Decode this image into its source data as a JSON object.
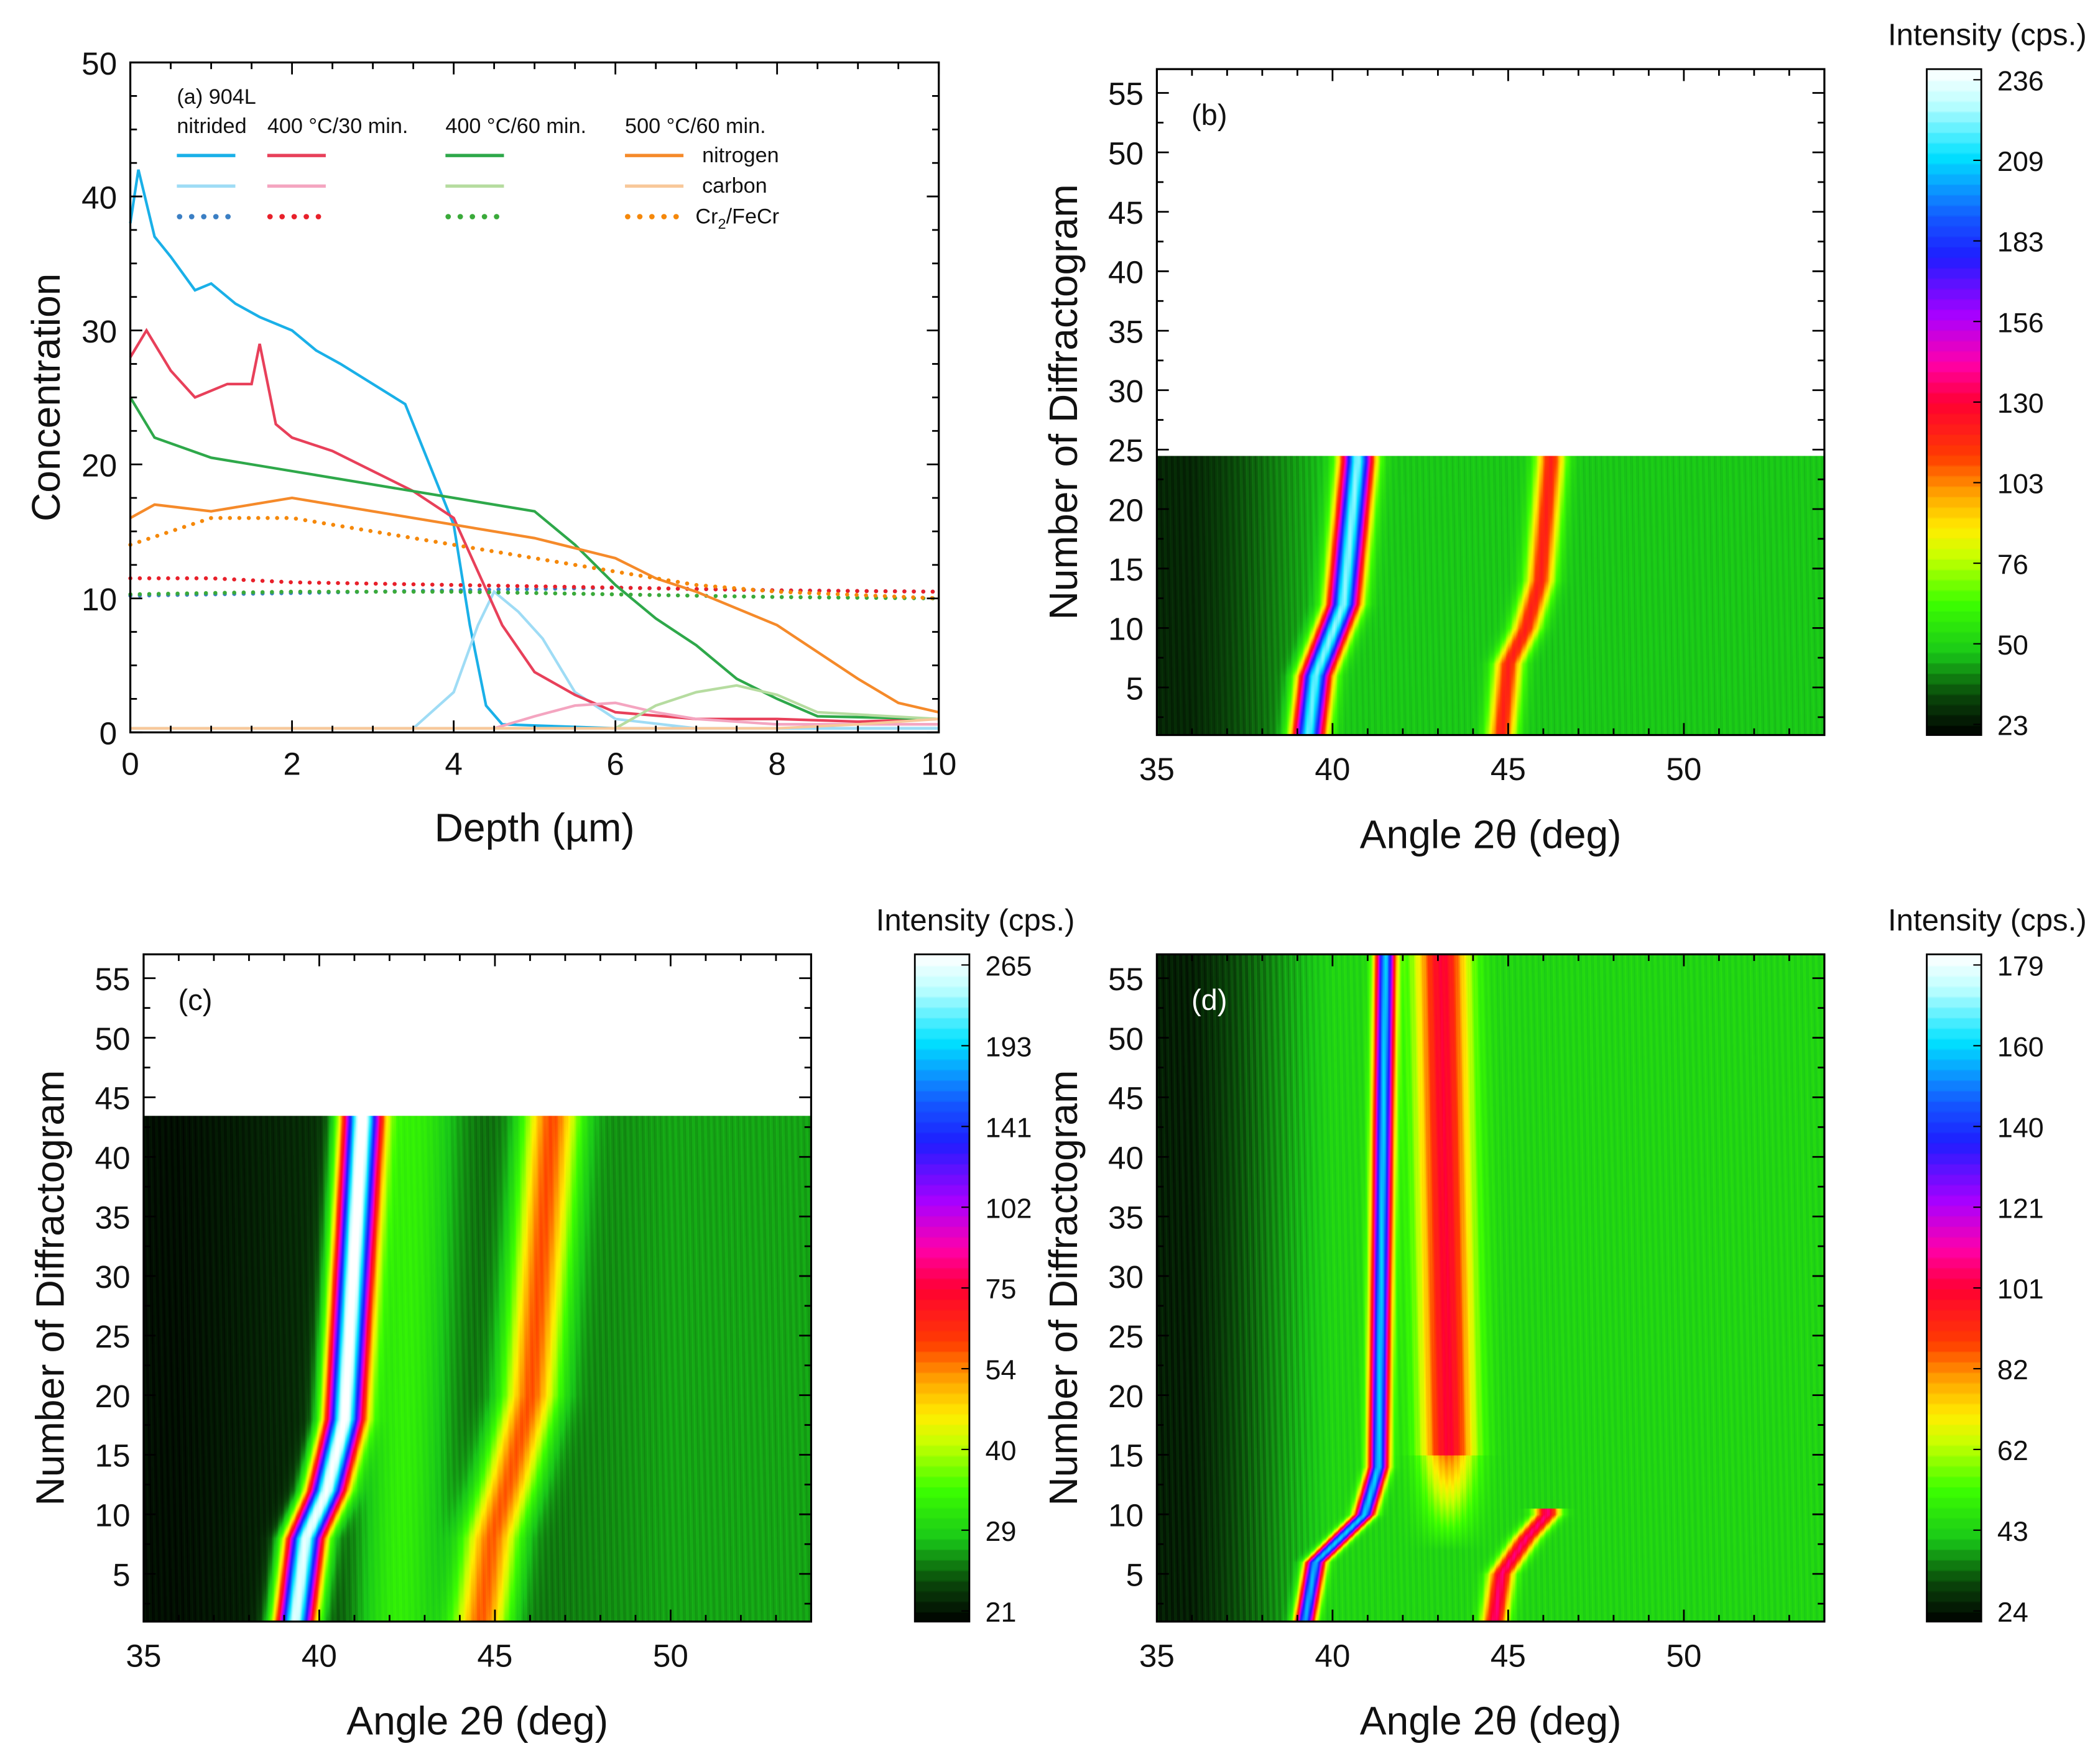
{
  "chart_data": [
    {
      "type": "line",
      "panel": "a",
      "annotation": "(a) 904L",
      "xlabel": "Depth (µm)",
      "ylabel": "Concentration",
      "xlim": [
        0,
        10
      ],
      "ylim": [
        0,
        50
      ],
      "xticks": [
        0,
        2,
        4,
        6,
        8,
        10
      ],
      "yticks": [
        0,
        10,
        20,
        30,
        40,
        50
      ],
      "legend": {
        "placement": "top",
        "columns": [
          "nitrided",
          "400 °C/30 min.",
          "400 °C/60 min.",
          "500 °C/60 min."
        ],
        "rows": [
          "nitrogen",
          "carbon",
          "Cr2/FeCr"
        ],
        "row_label_cr_main": "Cr",
        "row_label_cr_sub": "2",
        "row_label_cr_rest": "/FeCr"
      },
      "series": [
        {
          "name": "nitrided nitrogen",
          "color": "#1ab0e8",
          "style": "solid",
          "points": [
            [
              0,
              38
            ],
            [
              0.1,
              42
            ],
            [
              0.3,
              37
            ],
            [
              0.5,
              35.5
            ],
            [
              0.8,
              33
            ],
            [
              1,
              33.5
            ],
            [
              1.3,
              32
            ],
            [
              1.6,
              31
            ],
            [
              2,
              30
            ],
            [
              2.3,
              28.5
            ],
            [
              2.6,
              27.5
            ],
            [
              3,
              26
            ],
            [
              3.4,
              24.5
            ],
            [
              3.7,
              20
            ],
            [
              4,
              15.5
            ],
            [
              4.2,
              8
            ],
            [
              4.4,
              2
            ],
            [
              4.6,
              0.6
            ],
            [
              6,
              0.3
            ],
            [
              8,
              0.3
            ],
            [
              10,
              0.3
            ]
          ]
        },
        {
          "name": "nitrided carbon",
          "color": "#9fdcf5",
          "style": "solid",
          "points": [
            [
              0,
              0.3
            ],
            [
              3.5,
              0.3
            ],
            [
              4,
              3
            ],
            [
              4.3,
              8
            ],
            [
              4.5,
              10.5
            ],
            [
              4.8,
              9
            ],
            [
              5.1,
              7
            ],
            [
              5.5,
              3
            ],
            [
              6,
              1
            ],
            [
              7,
              0.3
            ],
            [
              10,
              0.3
            ]
          ]
        },
        {
          "name": "nitrided Cr2/FeCr",
          "color": "#3b7fc4",
          "style": "dotted",
          "points": [
            [
              0,
              10.2
            ],
            [
              2,
              10.4
            ],
            [
              4,
              10.6
            ],
            [
              6,
              10.8
            ],
            [
              8,
              10.6
            ],
            [
              10,
              10.5
            ]
          ]
        },
        {
          "name": "400 °C/30 min. nitrogen",
          "color": "#e8405a",
          "style": "solid",
          "points": [
            [
              0,
              28
            ],
            [
              0.2,
              30
            ],
            [
              0.5,
              27
            ],
            [
              0.8,
              25
            ],
            [
              1.2,
              26
            ],
            [
              1.5,
              26
            ],
            [
              1.6,
              29
            ],
            [
              1.8,
              23
            ],
            [
              2,
              22
            ],
            [
              2.5,
              21
            ],
            [
              3,
              19.5
            ],
            [
              3.5,
              18
            ],
            [
              4,
              16
            ],
            [
              4.3,
              12
            ],
            [
              4.6,
              8
            ],
            [
              5,
              4.5
            ],
            [
              5.5,
              2.8
            ],
            [
              6,
              1.5
            ],
            [
              7,
              1
            ],
            [
              8,
              1
            ],
            [
              9,
              0.8
            ],
            [
              10,
              1
            ]
          ]
        },
        {
          "name": "400 °C/30 min. carbon",
          "color": "#f4a5c0",
          "style": "solid",
          "points": [
            [
              0,
              0.3
            ],
            [
              4.5,
              0.3
            ],
            [
              5,
              1.2
            ],
            [
              5.5,
              2
            ],
            [
              6,
              2.2
            ],
            [
              6.5,
              1.5
            ],
            [
              7,
              1
            ],
            [
              8,
              0.6
            ],
            [
              10,
              0.6
            ]
          ]
        },
        {
          "name": "400 °C/30 min. Cr2/FeCr",
          "color": "#e8202a",
          "style": "dotted",
          "points": [
            [
              0,
              11.5
            ],
            [
              1,
              11.5
            ],
            [
              2,
              11.2
            ],
            [
              4,
              11
            ],
            [
              6,
              10.8
            ],
            [
              8,
              10.6
            ],
            [
              10,
              10.5
            ]
          ]
        },
        {
          "name": "400 °C/60 min. nitrogen",
          "color": "#2ea84a",
          "style": "solid",
          "points": [
            [
              0,
              25
            ],
            [
              0.3,
              22
            ],
            [
              1,
              20.5
            ],
            [
              2,
              19.5
            ],
            [
              3,
              18.5
            ],
            [
              4,
              17.5
            ],
            [
              5,
              16.5
            ],
            [
              5.5,
              14
            ],
            [
              6,
              11
            ],
            [
              6.5,
              8.5
            ],
            [
              7,
              6.5
            ],
            [
              7.5,
              4
            ],
            [
              8,
              2.5
            ],
            [
              8.5,
              1.2
            ],
            [
              10,
              1
            ]
          ]
        },
        {
          "name": "400 °C/60 min. carbon",
          "color": "#b6dca0",
          "style": "solid",
          "points": [
            [
              0,
              0.3
            ],
            [
              6,
              0.3
            ],
            [
              6.5,
              2
            ],
            [
              7,
              3
            ],
            [
              7.5,
              3.5
            ],
            [
              8,
              2.8
            ],
            [
              8.5,
              1.5
            ],
            [
              10,
              1
            ]
          ]
        },
        {
          "name": "400 °C/60 min. Cr2/FeCr",
          "color": "#3aaa3a",
          "style": "dotted",
          "points": [
            [
              0,
              10.3
            ],
            [
              2,
              10.5
            ],
            [
              4,
              10.5
            ],
            [
              6,
              10.3
            ],
            [
              8,
              10.1
            ],
            [
              10,
              10
            ]
          ]
        },
        {
          "name": "500 °C/60 min. nitrogen",
          "color": "#f58a2a",
          "style": "solid",
          "points": [
            [
              0,
              16
            ],
            [
              0.3,
              17
            ],
            [
              1,
              16.5
            ],
            [
              2,
              17.5
            ],
            [
              3,
              16.5
            ],
            [
              4,
              15.5
            ],
            [
              5,
              14.5
            ],
            [
              6,
              13
            ],
            [
              6.5,
              11.5
            ],
            [
              7,
              10.5
            ],
            [
              8,
              8
            ],
            [
              9,
              4
            ],
            [
              9.5,
              2.2
            ],
            [
              10,
              1.5
            ]
          ]
        },
        {
          "name": "500 °C/60 min. carbon",
          "color": "#f8c89a",
          "style": "solid",
          "points": [
            [
              0,
              0.3
            ],
            [
              8,
              0.3
            ],
            [
              9,
              0.6
            ],
            [
              10,
              1
            ]
          ]
        },
        {
          "name": "500 °C/60 min. Cr2/FeCr",
          "color": "#f5880a",
          "style": "dotted",
          "points": [
            [
              0,
              14
            ],
            [
              1,
              16
            ],
            [
              2,
              16
            ],
            [
              3,
              15
            ],
            [
              4,
              14
            ],
            [
              5,
              13
            ],
            [
              6,
              12
            ],
            [
              7,
              11
            ],
            [
              8,
              10.5
            ],
            [
              10,
              10
            ]
          ]
        }
      ]
    },
    {
      "type": "heatmap",
      "panel": "b",
      "annotation": "(b)",
      "xlabel": "Angle 2θ (deg)",
      "ylabel": "Number of Diffractogram",
      "xlim": [
        35,
        54
      ],
      "ylim": [
        1,
        57
      ],
      "rows_measured": 24,
      "xticks": [
        35,
        40,
        45,
        50
      ],
      "yticks": [
        5,
        10,
        15,
        20,
        25,
        30,
        35,
        40,
        45,
        50,
        55
      ],
      "colorbar_label": "Intensity (cps.)",
      "crange": [
        23,
        236
      ],
      "colorbar_ticks": [
        236,
        209,
        183,
        156,
        130,
        103,
        76,
        50,
        23
      ],
      "background": {
        "left": 30,
        "right": 50
      },
      "peaks": [
        {
          "amplitude": 170,
          "width": 0.45,
          "track": [
            [
              1,
              39.3
            ],
            [
              6,
              39.5
            ],
            [
              9,
              39.9
            ],
            [
              12,
              40.3
            ],
            [
              24,
              40.7
            ]
          ]
        },
        {
          "amplitude": 70,
          "width": 0.4,
          "track": [
            [
              1,
              44.8
            ],
            [
              7,
              45.0
            ],
            [
              10,
              45.5
            ],
            [
              14,
              45.9
            ],
            [
              24,
              46.2
            ]
          ]
        }
      ]
    },
    {
      "type": "heatmap",
      "panel": "c",
      "annotation": "(c)",
      "xlabel": "Angle 2θ (deg)",
      "ylabel": "Number of Diffractogram",
      "xlim": [
        35,
        54
      ],
      "ylim": [
        1,
        57
      ],
      "rows_measured": 43,
      "xticks": [
        35,
        40,
        45,
        50
      ],
      "yticks": [
        5,
        10,
        15,
        20,
        25,
        30,
        35,
        40,
        45,
        50,
        55
      ],
      "colorbar_label": "Intensity (cps.)",
      "crange": [
        21,
        265
      ],
      "colorbar_ticks": [
        265,
        193,
        141,
        102,
        75,
        54,
        40,
        29,
        21
      ],
      "background": {
        "left": 24,
        "right": 47
      },
      "peaks": [
        {
          "amplitude": 230,
          "width": 0.55,
          "track": [
            [
              1,
              39.3
            ],
            [
              8,
              39.6
            ],
            [
              12,
              40.2
            ],
            [
              18,
              40.7
            ],
            [
              43,
              41.2
            ]
          ]
        },
        {
          "amplitude": 30,
          "width": 1.3,
          "track": [
            [
              1,
              42.2
            ],
            [
              43,
              42.6
            ]
          ]
        },
        {
          "amplitude": 80,
          "width": 0.8,
          "track": [
            [
              1,
              44.6
            ],
            [
              8,
              44.9
            ],
            [
              13,
              45.4
            ],
            [
              20,
              46.0
            ],
            [
              43,
              46.6
            ]
          ]
        }
      ]
    },
    {
      "type": "heatmap",
      "panel": "d",
      "annotation": "(d)",
      "xlabel": "Angle 2θ (deg)",
      "ylabel": "Number of Diffractogram",
      "xlim": [
        35,
        54
      ],
      "ylim": [
        1,
        57
      ],
      "rows_measured": 57,
      "xticks": [
        35,
        40,
        45,
        50
      ],
      "yticks": [
        5,
        10,
        15,
        20,
        25,
        30,
        35,
        40,
        45,
        50,
        55
      ],
      "colorbar_label": "Intensity (cps.)",
      "crange": [
        24,
        179
      ],
      "colorbar_ticks": [
        179,
        160,
        140,
        121,
        101,
        82,
        62,
        43,
        24
      ],
      "background": {
        "left": 28,
        "right": 46
      },
      "peaks": [
        {
          "amplitude": 110,
          "width": 0.28,
          "track": [
            [
              1,
              39.2
            ],
            [
              6,
              39.5
            ],
            [
              8,
              40.2
            ],
            [
              10,
              40.9
            ],
            [
              14,
              41.3
            ],
            [
              57,
              41.5
            ]
          ]
        },
        {
          "amplitude": 55,
          "width": 0.75,
          "track": [
            [
              12,
              43.3
            ],
            [
              57,
              43.1
            ]
          ],
          "fade_below": 15
        },
        {
          "amplitude": 60,
          "width": 0.35,
          "track": [
            [
              1,
              44.6
            ],
            [
              5,
              44.8
            ],
            [
              8,
              45.5
            ],
            [
              10,
              46.1
            ]
          ],
          "rows_max": 10
        }
      ]
    }
  ]
}
